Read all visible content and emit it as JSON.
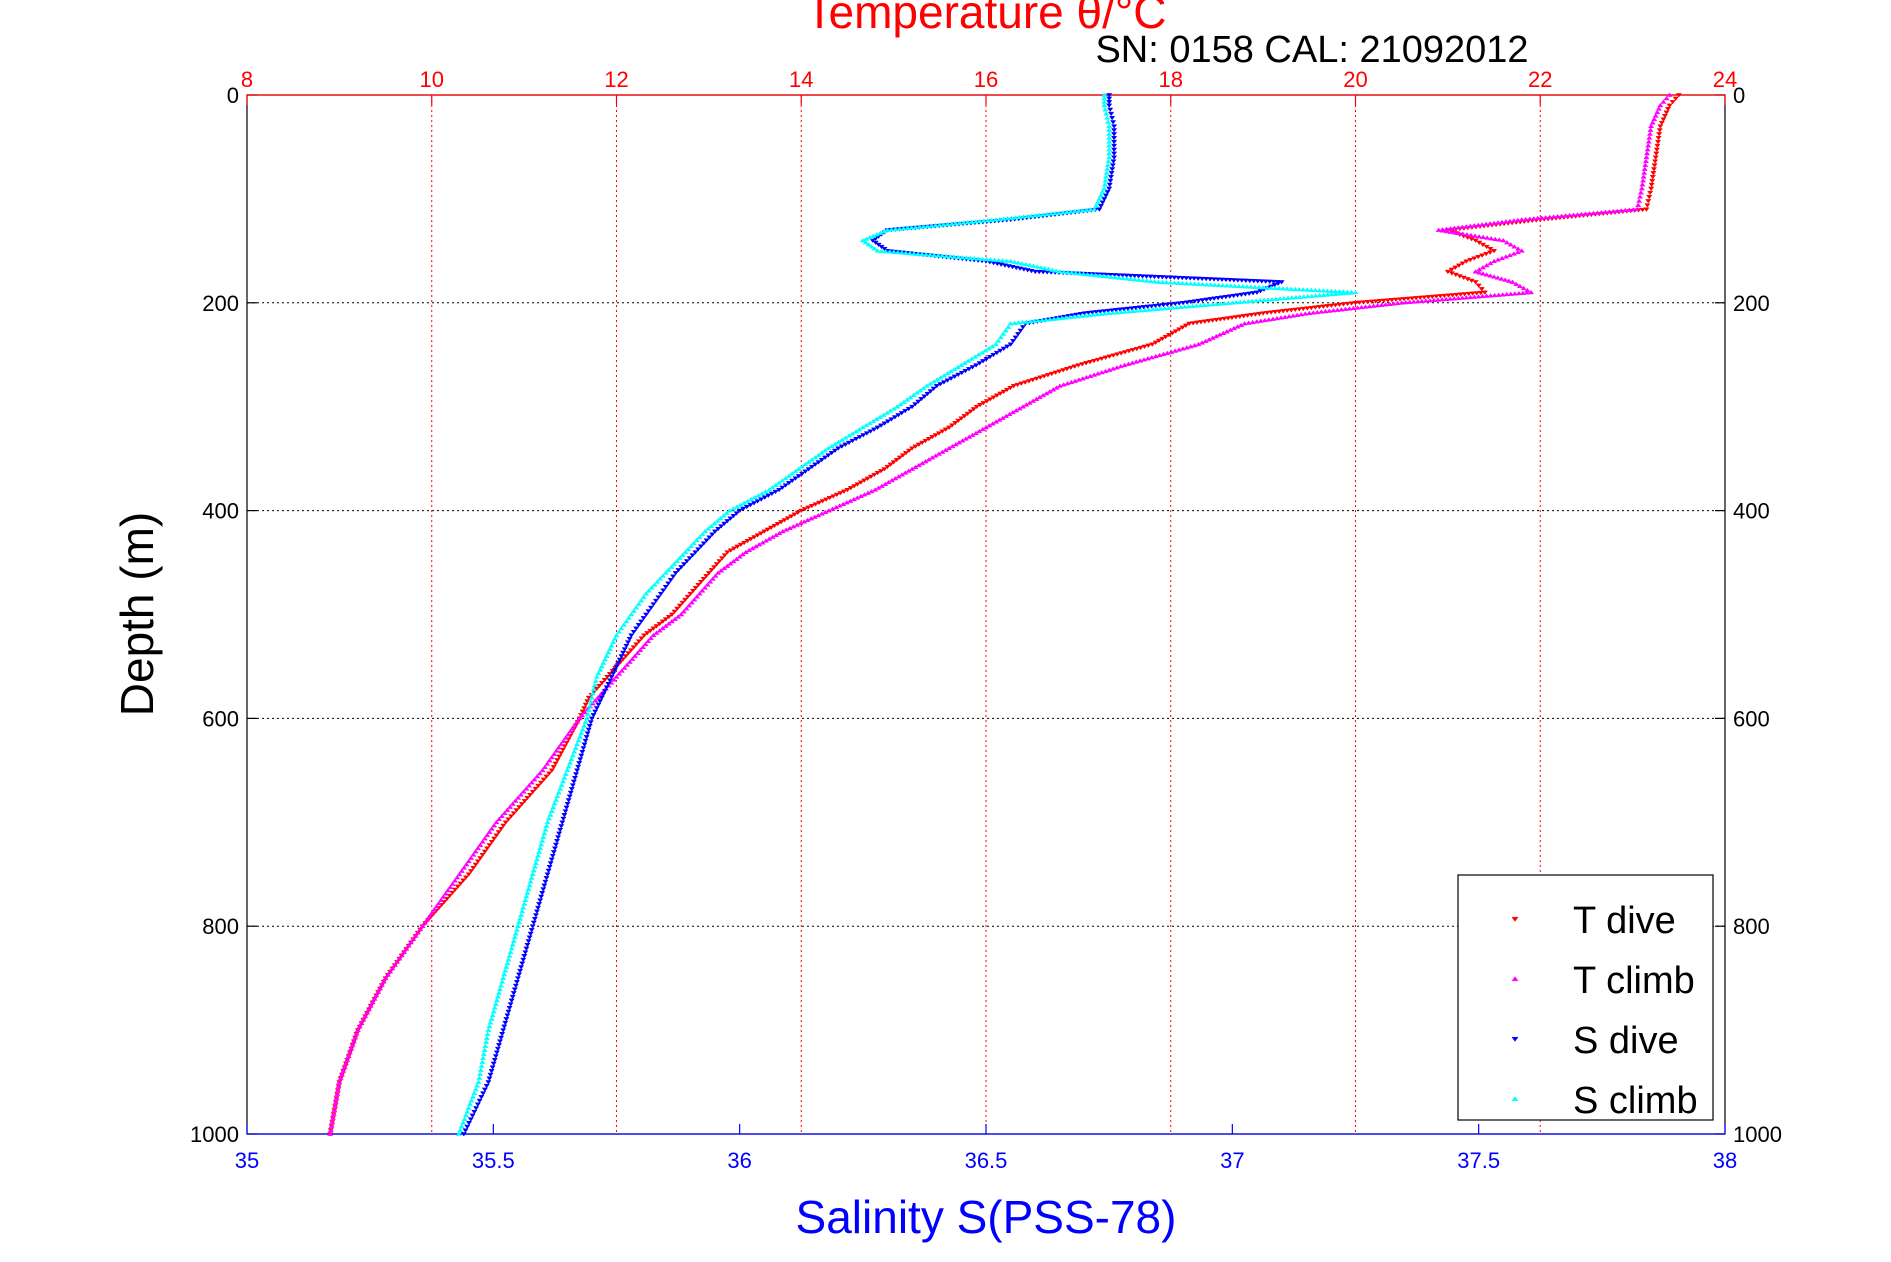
{
  "chart_data": {
    "type": "scatter",
    "title": "Temperature θ/°C",
    "subtitle": "SN: 0158  CAL: 21092012",
    "ylabel": "Depth (m)",
    "xlabel_bottom": "Salinity S(PSS-78)",
    "ylim": [
      0,
      1000
    ],
    "y_inverted": true,
    "y_ticks": [
      "0",
      "200",
      "400",
      "600",
      "800",
      "1000"
    ],
    "y_tick_values": [
      0,
      200,
      400,
      600,
      800,
      1000
    ],
    "top_axis": {
      "label": "Temperature θ/°C",
      "range": [
        8,
        24
      ],
      "ticks": [
        "8",
        "10",
        "12",
        "14",
        "16",
        "18",
        "20",
        "22",
        "24"
      ],
      "tick_values": [
        8,
        10,
        12,
        14,
        16,
        18,
        20,
        22,
        24
      ],
      "color": "#ff0000"
    },
    "bottom_axis": {
      "label": "Salinity S(PSS-78)",
      "range": [
        35,
        38
      ],
      "ticks": [
        "35",
        "35.5",
        "36",
        "36.5",
        "37",
        "37.5",
        "38"
      ],
      "tick_values": [
        35,
        35.5,
        36,
        36.5,
        37,
        37.5,
        38
      ],
      "color": "#0000ff"
    },
    "grid": true,
    "legend_position": "bottom-right",
    "series": [
      {
        "name": "T dive",
        "axis": "top",
        "marker": "triangle-down",
        "color": "#ff0000",
        "depth": [
          0,
          10,
          30,
          60,
          90,
          110,
          120,
          130,
          140,
          150,
          160,
          170,
          180,
          190,
          200,
          210,
          220,
          240,
          260,
          280,
          300,
          320,
          340,
          360,
          380,
          400,
          420,
          440,
          460,
          480,
          500,
          520,
          540,
          560,
          580,
          600,
          650,
          700,
          750,
          800,
          850,
          900,
          950,
          1000
        ],
        "values": [
          23.5,
          23.4,
          23.3,
          23.25,
          23.2,
          23.15,
          22.0,
          21.0,
          21.3,
          21.5,
          21.2,
          21.0,
          21.3,
          21.4,
          20.0,
          19.0,
          18.2,
          17.8,
          17.0,
          16.3,
          15.9,
          15.6,
          15.2,
          14.9,
          14.5,
          14.0,
          13.6,
          13.2,
          13.0,
          12.8,
          12.6,
          12.3,
          12.1,
          11.9,
          11.7,
          11.6,
          11.3,
          10.8,
          10.4,
          9.9,
          9.5,
          9.2,
          9.0,
          8.9
        ]
      },
      {
        "name": "T climb",
        "axis": "top",
        "marker": "triangle-up",
        "color": "#ff00ff",
        "depth": [
          0,
          10,
          30,
          60,
          90,
          110,
          120,
          130,
          140,
          150,
          160,
          170,
          180,
          190,
          200,
          210,
          220,
          240,
          260,
          280,
          300,
          320,
          340,
          360,
          380,
          400,
          420,
          440,
          460,
          480,
          500,
          520,
          540,
          560,
          580,
          600,
          650,
          700,
          750,
          800,
          850,
          900,
          950,
          1000
        ],
        "values": [
          23.4,
          23.3,
          23.2,
          23.15,
          23.1,
          23.05,
          21.8,
          20.9,
          21.6,
          21.8,
          21.5,
          21.3,
          21.7,
          21.9,
          20.5,
          19.5,
          18.8,
          18.3,
          17.5,
          16.8,
          16.4,
          16.0,
          15.6,
          15.2,
          14.8,
          14.3,
          13.8,
          13.4,
          13.1,
          12.9,
          12.7,
          12.4,
          12.2,
          12.0,
          11.8,
          11.6,
          11.2,
          10.7,
          10.3,
          9.9,
          9.5,
          9.2,
          9.0,
          8.9
        ]
      },
      {
        "name": "S dive",
        "axis": "bottom",
        "marker": "triangle-down",
        "color": "#0000ff",
        "depth": [
          0,
          10,
          30,
          60,
          90,
          110,
          120,
          130,
          140,
          150,
          160,
          170,
          180,
          190,
          200,
          210,
          220,
          240,
          260,
          280,
          300,
          320,
          340,
          360,
          380,
          400,
          420,
          440,
          460,
          480,
          500,
          520,
          540,
          560,
          580,
          600,
          650,
          700,
          750,
          800,
          850,
          900,
          950,
          1000
        ],
        "values": [
          36.75,
          36.75,
          36.76,
          36.76,
          36.75,
          36.73,
          36.55,
          36.3,
          36.27,
          36.3,
          36.5,
          36.6,
          37.1,
          37.05,
          36.9,
          36.7,
          36.58,
          36.55,
          36.48,
          36.4,
          36.35,
          36.28,
          36.2,
          36.14,
          36.08,
          36.0,
          35.95,
          35.91,
          35.87,
          35.84,
          35.81,
          35.78,
          35.76,
          35.74,
          35.72,
          35.7,
          35.67,
          35.64,
          35.61,
          35.58,
          35.55,
          35.52,
          35.49,
          35.44
        ]
      },
      {
        "name": "S climb",
        "axis": "bottom",
        "marker": "triangle-up",
        "color": "#00ffff",
        "depth": [
          0,
          10,
          30,
          60,
          90,
          110,
          120,
          130,
          140,
          150,
          160,
          170,
          180,
          190,
          200,
          210,
          220,
          240,
          260,
          280,
          300,
          320,
          340,
          360,
          380,
          400,
          420,
          440,
          460,
          480,
          500,
          520,
          540,
          560,
          580,
          600,
          650,
          700,
          750,
          800,
          850,
          900,
          950,
          1000
        ],
        "values": [
          36.74,
          36.74,
          36.75,
          36.75,
          36.74,
          36.72,
          36.52,
          36.3,
          36.25,
          36.28,
          36.55,
          36.65,
          36.85,
          37.25,
          37.0,
          36.75,
          36.55,
          36.52,
          36.45,
          36.38,
          36.32,
          36.25,
          36.18,
          36.12,
          36.06,
          35.98,
          35.93,
          35.89,
          35.85,
          35.81,
          35.78,
          35.75,
          35.73,
          35.71,
          35.7,
          35.69,
          35.65,
          35.61,
          35.58,
          35.55,
          35.52,
          35.49,
          35.47,
          35.43
        ]
      }
    ]
  }
}
